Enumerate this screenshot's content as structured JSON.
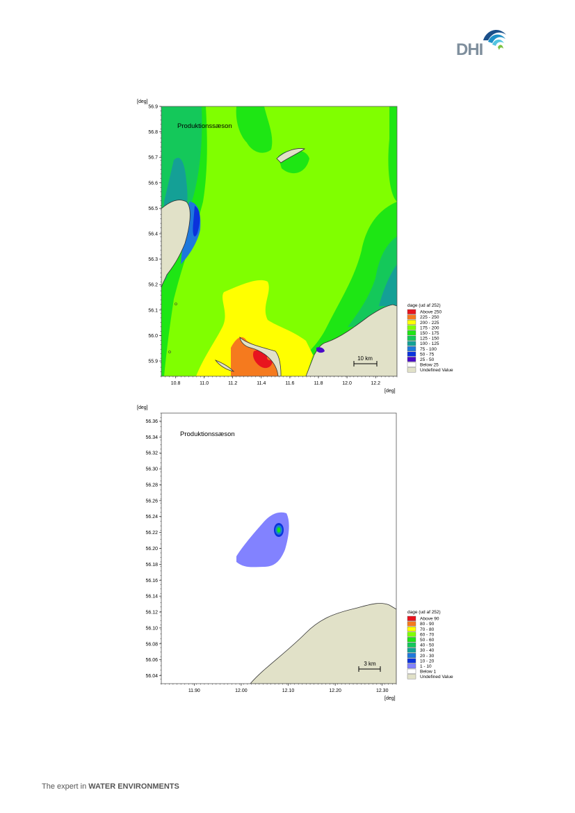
{
  "brand": {
    "logo_text": "DHI",
    "logo_colors": [
      "#1b4f8a",
      "#1e90c8",
      "#53c5e0",
      "#7cc242"
    ]
  },
  "footer": {
    "prefix": "The expert in ",
    "bold": "WATER ENVIRONMENTS"
  },
  "chart_data": [
    {
      "type": "heatmap",
      "title": "Produktionssæson",
      "xlabel": "[deg]",
      "ylabel": "[deg]",
      "xlim": [
        10.7,
        12.35
      ],
      "ylim": [
        55.84,
        56.9
      ],
      "x_ticks": [
        "10.8",
        "11.0",
        "11.2",
        "11.4",
        "11.6",
        "11.8",
        "12.0",
        "12.2"
      ],
      "y_ticks": [
        "56.9",
        "56.8",
        "56.7",
        "56.6",
        "56.5",
        "56.4",
        "56.3",
        "56.2",
        "56.1",
        "56.0",
        "55.9"
      ],
      "scale_bar": "10 km",
      "legend": {
        "position": "right",
        "title": "dage (ud af 252)",
        "entries": [
          {
            "label": "Above 250",
            "color": "#e8141e"
          },
          {
            "label": "225 - 250",
            "color": "#f57a1e"
          },
          {
            "label": "200 - 225",
            "color": "#ffff00"
          },
          {
            "label": "175 - 200",
            "color": "#80ff00"
          },
          {
            "label": "150 - 175",
            "color": "#1ee614"
          },
          {
            "label": "125 - 150",
            "color": "#14c85a"
          },
          {
            "label": "100 - 125",
            "color": "#14a096"
          },
          {
            "label": "75 - 100",
            "color": "#1e78dc"
          },
          {
            "label": "50 - 75",
            "color": "#0a32dc"
          },
          {
            "label": "25 - 50",
            "color": "#4b0ac8"
          },
          {
            "label": "Below 25",
            "color": "#ffffff"
          },
          {
            "label": "Undefined Value",
            "color": "#e1e1c8"
          }
        ]
      }
    },
    {
      "type": "heatmap",
      "title": "Produktionssæson",
      "xlabel": "[deg]",
      "ylabel": "[deg]",
      "xlim": [
        11.83,
        12.33
      ],
      "ylim": [
        56.03,
        56.37
      ],
      "x_ticks": [
        "11.90",
        "12.00",
        "12.10",
        "12.20",
        "12.30"
      ],
      "y_ticks": [
        "56.36",
        "56.34",
        "56.32",
        "56.30",
        "56.28",
        "56.26",
        "56.24",
        "56.22",
        "56.20",
        "56.18",
        "56.16",
        "56.14",
        "56.12",
        "56.10",
        "56.08",
        "56.06",
        "56.04"
      ],
      "scale_bar": "3 km",
      "legend": {
        "position": "right",
        "title": "dage (ud af 252)",
        "entries": [
          {
            "label": "Above 90",
            "color": "#e8141e"
          },
          {
            "label": "80 - 90",
            "color": "#f57a1e"
          },
          {
            "label": "70 - 80",
            "color": "#ffff00"
          },
          {
            "label": "60 - 70",
            "color": "#80ff00"
          },
          {
            "label": "50 - 60",
            "color": "#1ee614"
          },
          {
            "label": "40 - 50",
            "color": "#14c85a"
          },
          {
            "label": "30 - 40",
            "color": "#14a096"
          },
          {
            "label": "20 - 30",
            "color": "#1e78dc"
          },
          {
            "label": "10 - 20",
            "color": "#0a32dc"
          },
          {
            "label": "1 - 10",
            "color": "#8282ff"
          },
          {
            "label": "Below 1",
            "color": "#ffffff"
          },
          {
            "label": "Undefined Value",
            "color": "#e1e1c8"
          }
        ]
      }
    }
  ]
}
